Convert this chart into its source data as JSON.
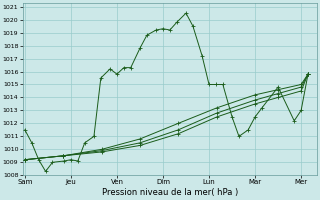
{
  "xlabel": "Pression niveau de la mer( hPa )",
  "background_color": "#cce8e8",
  "grid_color": "#99cccc",
  "line_color": "#1a5c1a",
  "ylim": [
    1008,
    1021
  ],
  "yticks": [
    1008,
    1009,
    1010,
    1011,
    1012,
    1013,
    1014,
    1015,
    1016,
    1017,
    1018,
    1019,
    1020,
    1021
  ],
  "x_labels": [
    "Sam",
    "Jeu",
    "Ven",
    "Dim",
    "Lun",
    "Mar",
    "Mer"
  ],
  "x_positions": [
    0,
    1,
    2,
    3,
    4,
    5,
    6
  ],
  "series1_x": [
    0.0,
    0.15,
    0.3,
    0.45,
    0.6,
    0.85,
    1.0,
    1.15,
    1.3,
    1.5,
    1.65,
    1.85,
    2.0,
    2.15,
    2.3,
    2.5,
    2.65,
    2.85,
    3.0,
    3.15,
    3.3,
    3.5,
    3.65,
    3.85,
    4.0,
    4.15,
    4.3,
    4.5,
    4.65,
    4.85,
    5.0,
    5.15,
    5.5,
    5.85,
    6.0,
    6.15
  ],
  "series1_y": [
    1011.5,
    1010.5,
    1009.2,
    1008.3,
    1009.0,
    1009.1,
    1009.2,
    1009.1,
    1010.5,
    1011.0,
    1015.5,
    1016.2,
    1015.8,
    1016.3,
    1016.3,
    1017.8,
    1018.8,
    1019.2,
    1019.3,
    1019.2,
    1019.8,
    1020.5,
    1019.5,
    1017.2,
    1015.0,
    1015.0,
    1015.0,
    1012.5,
    1011.0,
    1011.5,
    1012.5,
    1013.2,
    1014.8,
    1012.2,
    1013.0,
    1015.8
  ],
  "series2_x": [
    0.0,
    0.83,
    1.67,
    2.5,
    3.33,
    4.17,
    5.0,
    5.5,
    6.0,
    6.15
  ],
  "series2_y": [
    1009.2,
    1009.5,
    1009.8,
    1010.3,
    1011.2,
    1012.5,
    1013.5,
    1014.0,
    1014.5,
    1015.8
  ],
  "series3_x": [
    0.0,
    0.83,
    1.67,
    2.5,
    3.33,
    4.17,
    5.0,
    5.5,
    6.0,
    6.15
  ],
  "series3_y": [
    1009.2,
    1009.5,
    1009.9,
    1010.5,
    1011.5,
    1012.8,
    1013.8,
    1014.3,
    1014.8,
    1015.8
  ],
  "series4_x": [
    0.0,
    0.83,
    1.67,
    2.5,
    3.33,
    4.17,
    5.0,
    5.5,
    6.0,
    6.15
  ],
  "series4_y": [
    1009.2,
    1009.5,
    1010.0,
    1010.8,
    1012.0,
    1013.2,
    1014.2,
    1014.6,
    1015.0,
    1015.8
  ]
}
